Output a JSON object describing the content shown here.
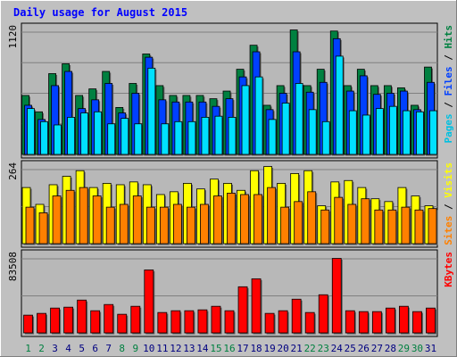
{
  "chart_data": {
    "type": "bar",
    "title": "Daily usage for August 2015",
    "colors": {
      "background": "#c0c0c0",
      "plot": "#b8b8b8",
      "title": "#0000ff",
      "hits": "#008040",
      "files": "#0040ff",
      "pages": "#00e0ff",
      "visits": "#ffff00",
      "sites": "#ff8000",
      "kbytes": "#ff0000",
      "weekend_label": "#008040",
      "weekday_label": "#000080"
    },
    "categories": [
      "1",
      "2",
      "3",
      "4",
      "5",
      "6",
      "7",
      "8",
      "9",
      "10",
      "11",
      "12",
      "13",
      "14",
      "15",
      "16",
      "17",
      "18",
      "19",
      "20",
      "21",
      "22",
      "23",
      "24",
      "25",
      "26",
      "27",
      "28",
      "29",
      "30",
      "31"
    ],
    "weekend_days": [
      "1",
      "2",
      "8",
      "9",
      "15",
      "16",
      "22",
      "23",
      "29",
      "30"
    ],
    "panels": [
      {
        "id": "usage",
        "ymax_label": "1120",
        "ymax": 1120,
        "side_labels": [
          {
            "text": "Pages",
            "color": "#00c0e0"
          },
          {
            "text": " / ",
            "color": "#000000"
          },
          {
            "text": "Files",
            "color": "#0040ff"
          },
          {
            "text": " / ",
            "color": "#000000"
          },
          {
            "text": "Hits",
            "color": "#008040"
          }
        ],
        "series": [
          {
            "name": "Hits",
            "color": "#008040",
            "values": [
              540,
              390,
              740,
              830,
              540,
              600,
              760,
              430,
              650,
              920,
              630,
              540,
              540,
              540,
              510,
              580,
              780,
              1000,
              450,
              630,
              1140,
              630,
              780,
              1130,
              630,
              780,
              630,
              630,
              610,
              450,
              800
            ]
          },
          {
            "name": "Files",
            "color": "#0040ff",
            "values": [
              450,
              320,
              630,
              760,
              420,
              500,
              650,
              380,
              560,
              890,
              500,
              480,
              480,
              480,
              440,
              510,
              710,
              940,
              410,
              560,
              940,
              570,
              660,
              1060,
              580,
              720,
              550,
              560,
              580,
              410,
              660
            ]
          },
          {
            "name": "Pages",
            "color": "#00e0ff",
            "values": [
              420,
              300,
              270,
              340,
              380,
              390,
              280,
              330,
              280,
              790,
              280,
              300,
              300,
              340,
              350,
              340,
              630,
              710,
              320,
              470,
              650,
              410,
              300,
              900,
              400,
              360,
              420,
              440,
              400,
              390,
              400
            ]
          }
        ]
      },
      {
        "id": "visitors",
        "ymax_label": "264",
        "ymax": 264,
        "side_labels": [
          {
            "text": "Sites",
            "color": "#ff8000"
          },
          {
            "text": " / ",
            "color": "#000000"
          },
          {
            "text": "Visits",
            "color": "#ffff00"
          }
        ],
        "series": [
          {
            "name": "Visits",
            "color": "#ffff00",
            "values": [
              200,
              140,
              210,
              240,
              260,
              200,
              215,
              210,
              220,
              210,
              175,
              185,
              215,
              195,
              230,
              215,
              190,
              260,
              275,
              215,
              250,
              260,
              135,
              220,
              225,
              200,
              160,
              150,
              200,
              170,
              135
            ]
          },
          {
            "name": "Sites",
            "color": "#ff8000",
            "values": [
              130,
              110,
              170,
              190,
              200,
              170,
              130,
              140,
              170,
              130,
              130,
              140,
              130,
              140,
              170,
              180,
              175,
              175,
              200,
              130,
              150,
              185,
              120,
              165,
              140,
              160,
              120,
              120,
              130,
              120,
              125
            ]
          }
        ]
      },
      {
        "id": "kbytes",
        "ymax_label": "83508",
        "ymax": 83508,
        "side_labels": [
          {
            "text": "KBytes",
            "color": "#ff0000"
          }
        ],
        "series": [
          {
            "name": "KBytes",
            "color": "#ff0000",
            "values": [
              20000,
              22000,
              28000,
              29000,
              37000,
              25000,
              32000,
              21000,
              30000,
              71000,
              23000,
              25000,
              25000,
              26000,
              30000,
              25000,
              52000,
              61000,
              22000,
              25000,
              38000,
              23000,
              43000,
              84000,
              25000,
              24000,
              24000,
              28000,
              30000,
              24000,
              28000
            ]
          }
        ]
      }
    ]
  }
}
